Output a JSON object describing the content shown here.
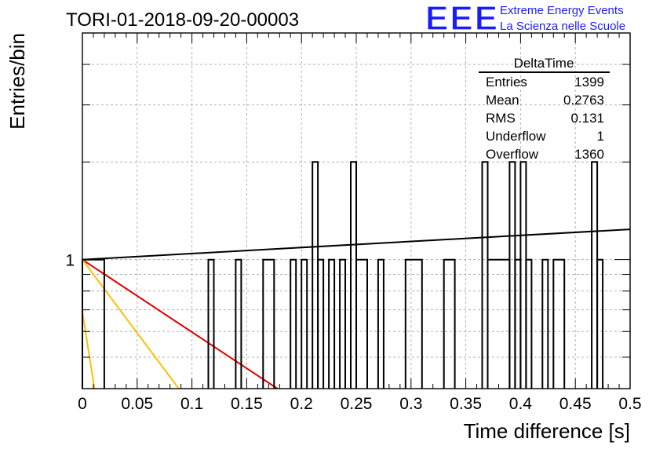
{
  "header": {
    "title": "TORI-01-2018-09-20-00003",
    "logo_text": "EEE",
    "logo_line1": "Extreme Energy Events",
    "logo_line2": "La Scienza nelle Scuole",
    "logo_color": "#1a1aff"
  },
  "chart_data": {
    "type": "histogram",
    "title": "TORI-01-2018-09-20-00003",
    "xlabel": "Time difference [s]",
    "ylabel": "Entries/bin",
    "xlim": [
      0,
      0.5
    ],
    "ylim": [
      0.4,
      5
    ],
    "yscale": "log",
    "grid": true,
    "x_ticks": [
      "0",
      "0.05",
      "0.1",
      "0.15",
      "0.2",
      "0.25",
      "0.3",
      "0.35",
      "0.4",
      "0.45",
      "0.5"
    ],
    "y_ticks": [
      "1"
    ],
    "bins": [
      {
        "x0": 0.0,
        "x1": 0.02,
        "count": 1
      },
      {
        "x0": 0.115,
        "x1": 0.12,
        "count": 1
      },
      {
        "x0": 0.14,
        "x1": 0.145,
        "count": 1
      },
      {
        "x0": 0.165,
        "x1": 0.175,
        "count": 1
      },
      {
        "x0": 0.19,
        "x1": 0.195,
        "count": 1
      },
      {
        "x0": 0.2,
        "x1": 0.205,
        "count": 1
      },
      {
        "x0": 0.21,
        "x1": 0.215,
        "count": 2
      },
      {
        "x0": 0.215,
        "x1": 0.22,
        "count": 1
      },
      {
        "x0": 0.225,
        "x1": 0.23,
        "count": 1
      },
      {
        "x0": 0.235,
        "x1": 0.24,
        "count": 1
      },
      {
        "x0": 0.245,
        "x1": 0.25,
        "count": 2
      },
      {
        "x0": 0.25,
        "x1": 0.26,
        "count": 1
      },
      {
        "x0": 0.27,
        "x1": 0.275,
        "count": 1
      },
      {
        "x0": 0.295,
        "x1": 0.31,
        "count": 1
      },
      {
        "x0": 0.33,
        "x1": 0.34,
        "count": 1
      },
      {
        "x0": 0.365,
        "x1": 0.37,
        "count": 2
      },
      {
        "x0": 0.37,
        "x1": 0.39,
        "count": 1
      },
      {
        "x0": 0.39,
        "x1": 0.395,
        "count": 2
      },
      {
        "x0": 0.395,
        "x1": 0.4,
        "count": 1
      },
      {
        "x0": 0.4,
        "x1": 0.405,
        "count": 2
      },
      {
        "x0": 0.405,
        "x1": 0.41,
        "count": 1
      },
      {
        "x0": 0.42,
        "x1": 0.425,
        "count": 1
      },
      {
        "x0": 0.43,
        "x1": 0.44,
        "count": 1
      },
      {
        "x0": 0.465,
        "x1": 0.47,
        "count": 2
      },
      {
        "x0": 0.47,
        "x1": 0.475,
        "count": 1
      }
    ],
    "fit_lines": [
      {
        "color": "#000000",
        "points": [
          [
            0.0,
            1.0
          ],
          [
            0.5,
            1.24
          ]
        ]
      },
      {
        "color": "#e00000",
        "points": [
          [
            0.0,
            1.0
          ],
          [
            0.178,
            0.4
          ]
        ]
      },
      {
        "color": "#ffc000",
        "points": [
          [
            0.0,
            1.0
          ],
          [
            0.088,
            0.4
          ]
        ]
      },
      {
        "color": "#ffc000",
        "points": [
          [
            0.0,
            0.69
          ],
          [
            0.011,
            0.4
          ]
        ]
      }
    ],
    "stats": {
      "title": "DeltaTime",
      "rows": [
        {
          "label": "Entries",
          "value": "1399"
        },
        {
          "label": "Mean",
          "value": "0.2763"
        },
        {
          "label": "RMS",
          "value": "0.131"
        },
        {
          "label": "Underflow",
          "value": "1"
        },
        {
          "label": "Overflow",
          "value": "1360"
        }
      ]
    }
  }
}
